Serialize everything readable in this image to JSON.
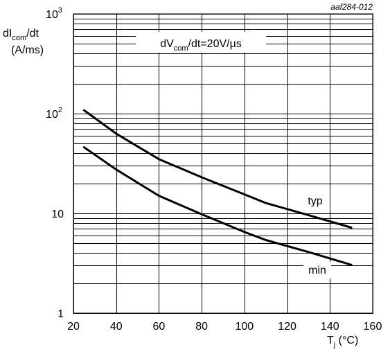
{
  "figure_code": "aaf284-012",
  "annotation": {
    "prefix": "dV",
    "sub": "com",
    "suffix": "/dt=20V/µs"
  },
  "y_axis_label": {
    "line1_prefix": "dI",
    "line1_sub": "com",
    "line1_suffix": "/dt",
    "line2": "(A/ms)"
  },
  "x_axis_label": {
    "prefix": "T",
    "sub": "j",
    "suffix": " (°C)"
  },
  "chart_data": {
    "type": "line",
    "x_scale": "linear",
    "y_scale": "log",
    "xlim": [
      20,
      160
    ],
    "ylim": [
      1,
      1000
    ],
    "x_ticks": [
      20,
      40,
      60,
      80,
      100,
      120,
      140,
      160
    ],
    "y_ticks": [
      {
        "value": 1,
        "base": "1",
        "exp": ""
      },
      {
        "value": 10,
        "base": "10",
        "exp": ""
      },
      {
        "value": 100,
        "base": "10",
        "exp": "2"
      },
      {
        "value": 1000,
        "base": "10",
        "exp": "3"
      }
    ],
    "grid": true,
    "series": [
      {
        "name": "typ",
        "x": [
          25,
          40,
          60,
          80,
          100,
          110,
          130,
          150
        ],
        "y": [
          108,
          63,
          35,
          23,
          15.5,
          12.7,
          9.6,
          7.2
        ]
      },
      {
        "name": "min",
        "x": [
          25,
          40,
          60,
          80,
          100,
          110,
          130,
          150
        ],
        "y": [
          46,
          27.5,
          15,
          9.8,
          6.5,
          5.4,
          4.1,
          3.05
        ]
      }
    ]
  }
}
